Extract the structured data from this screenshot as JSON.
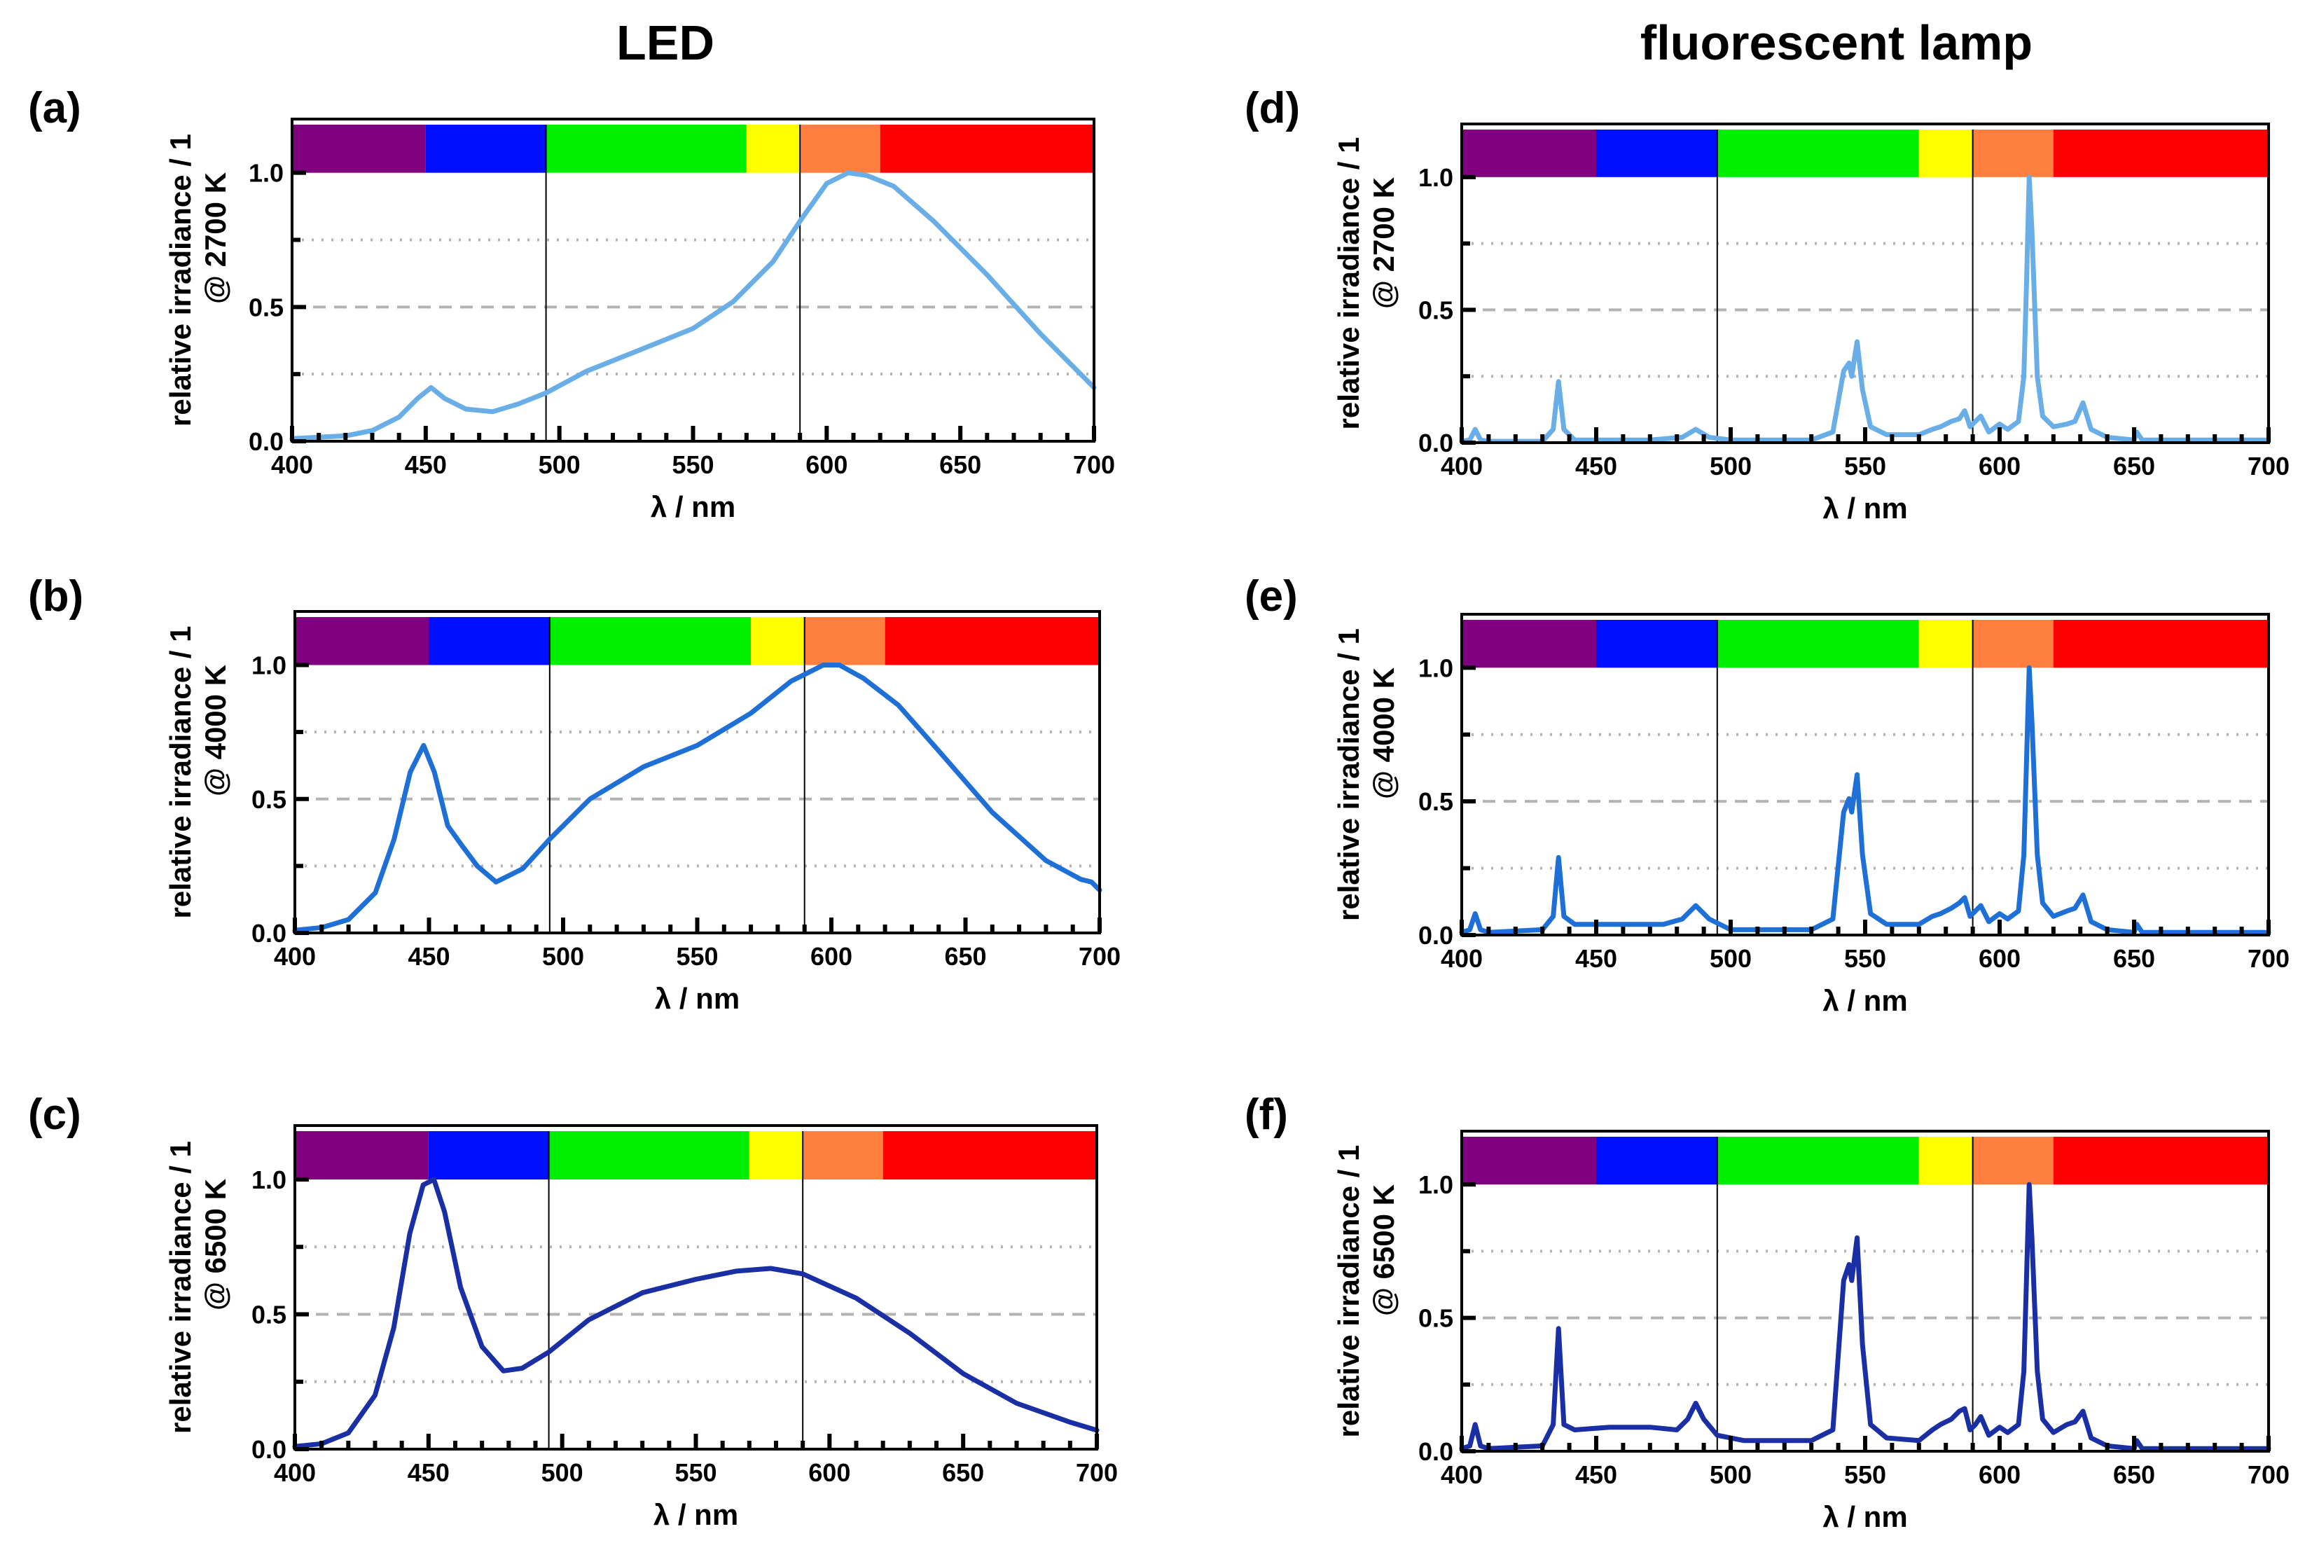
{
  "column_titles": {
    "left": "LED",
    "right": "fluorescent lamp"
  },
  "colors": {
    "bands": [
      "#800080",
      "#0010ff",
      "#00ee00",
      "#ffff00",
      "#ff7f3f",
      "#ff0000"
    ],
    "series": {
      "a": "#6aaee8",
      "b": "#1e6fd6",
      "c": "#1a2fa3",
      "d": "#6aaee8",
      "e": "#1e6fd6",
      "f": "#1a2fa3"
    },
    "gridline": "#b3b3b3"
  },
  "chart_data": [
    {
      "id": "a",
      "label": "(a)",
      "type": "line",
      "ylabel_line1": "relative irradiance / 1",
      "ylabel_line2": "@ 2700 K",
      "xlabel": "λ / nm",
      "xlim": [
        400,
        700
      ],
      "ylim": [
        0,
        1.2
      ],
      "xticks": [
        "400",
        "450",
        "500",
        "550",
        "600",
        "650",
        "700"
      ],
      "yticks": [
        "0.0",
        "0.5",
        "1.0"
      ],
      "bands": [
        [
          400,
          450
        ],
        [
          450,
          495
        ],
        [
          495,
          570
        ],
        [
          570,
          590
        ],
        [
          590,
          620
        ],
        [
          620,
          700
        ]
      ],
      "dividers": [
        495,
        590
      ],
      "series": [
        {
          "name": "LED 2700 K",
          "x": [
            400,
            410,
            420,
            430,
            440,
            447,
            452,
            457,
            465,
            475,
            485,
            495,
            510,
            530,
            550,
            565,
            580,
            590,
            600,
            608,
            615,
            625,
            640,
            660,
            680,
            690,
            700
          ],
          "y": [
            0.01,
            0.015,
            0.02,
            0.04,
            0.09,
            0.16,
            0.2,
            0.16,
            0.12,
            0.11,
            0.14,
            0.18,
            0.26,
            0.34,
            0.42,
            0.52,
            0.67,
            0.82,
            0.96,
            1.0,
            0.99,
            0.95,
            0.82,
            0.62,
            0.4,
            0.3,
            0.2
          ]
        }
      ]
    },
    {
      "id": "b",
      "label": "(b)",
      "type": "line",
      "ylabel_line1": "relative irradiance / 1",
      "ylabel_line2": "@ 4000 K",
      "xlabel": "λ / nm",
      "xlim": [
        400,
        700
      ],
      "ylim": [
        0,
        1.2
      ],
      "xticks": [
        "400",
        "450",
        "500",
        "550",
        "600",
        "650",
        "700"
      ],
      "yticks": [
        "0.0",
        "0.5",
        "1.0"
      ],
      "bands": [
        [
          400,
          450
        ],
        [
          450,
          495
        ],
        [
          495,
          570
        ],
        [
          570,
          590
        ],
        [
          590,
          620
        ],
        [
          620,
          700
        ]
      ],
      "dividers": [
        495,
        590
      ],
      "series": [
        {
          "name": "LED 4000 K",
          "x": [
            400,
            410,
            420,
            430,
            437,
            443,
            448,
            452,
            457,
            462,
            468,
            475,
            485,
            495,
            510,
            530,
            550,
            570,
            585,
            597,
            603,
            612,
            625,
            640,
            660,
            680,
            693,
            697,
            700
          ],
          "y": [
            0.01,
            0.02,
            0.05,
            0.15,
            0.35,
            0.6,
            0.7,
            0.6,
            0.4,
            0.33,
            0.25,
            0.19,
            0.24,
            0.35,
            0.5,
            0.62,
            0.7,
            0.82,
            0.94,
            1.0,
            1.0,
            0.95,
            0.85,
            0.68,
            0.45,
            0.27,
            0.2,
            0.19,
            0.16
          ]
        }
      ]
    },
    {
      "id": "c",
      "label": "(c)",
      "type": "line",
      "ylabel_line1": "relative irradiance / 1",
      "ylabel_line2": "@ 6500 K",
      "xlabel": "λ / nm",
      "xlim": [
        400,
        700
      ],
      "ylim": [
        0,
        1.2
      ],
      "xticks": [
        "400",
        "450",
        "500",
        "550",
        "600",
        "650",
        "700"
      ],
      "yticks": [
        "0.0",
        "0.5",
        "1.0"
      ],
      "bands": [
        [
          400,
          450
        ],
        [
          450,
          495
        ],
        [
          495,
          570
        ],
        [
          570,
          590
        ],
        [
          590,
          620
        ],
        [
          620,
          700
        ]
      ],
      "dividers": [
        495,
        590
      ],
      "series": [
        {
          "name": "LED 6500 K",
          "x": [
            400,
            410,
            420,
            430,
            437,
            443,
            448,
            452,
            456,
            462,
            470,
            478,
            485,
            495,
            510,
            530,
            550,
            565,
            578,
            590,
            610,
            630,
            650,
            670,
            690,
            700
          ],
          "y": [
            0.01,
            0.02,
            0.06,
            0.2,
            0.45,
            0.8,
            0.98,
            1.0,
            0.88,
            0.6,
            0.38,
            0.29,
            0.3,
            0.36,
            0.48,
            0.58,
            0.63,
            0.66,
            0.67,
            0.65,
            0.56,
            0.43,
            0.28,
            0.17,
            0.1,
            0.07
          ]
        }
      ]
    },
    {
      "id": "d",
      "label": "(d)",
      "type": "line",
      "ylabel_line1": "relative irradiance / 1",
      "ylabel_line2": "@ 2700 K",
      "xlabel": "λ / nm",
      "xlim": [
        400,
        700
      ],
      "ylim": [
        0,
        1.2
      ],
      "xticks": [
        "400",
        "450",
        "500",
        "550",
        "600",
        "650",
        "700"
      ],
      "yticks": [
        "0.0",
        "0.5",
        "1.0"
      ],
      "bands": [
        [
          400,
          450
        ],
        [
          450,
          495
        ],
        [
          495,
          570
        ],
        [
          570,
          590
        ],
        [
          590,
          620
        ],
        [
          620,
          700
        ]
      ],
      "dividers": [
        495,
        590
      ],
      "series": [
        {
          "name": "fluorescent 2700 K",
          "x": [
            400,
            403,
            405,
            407,
            410,
            430,
            434,
            436,
            438,
            442,
            470,
            482,
            487,
            492,
            500,
            530,
            538,
            542,
            544,
            545,
            547,
            549,
            552,
            558,
            570,
            575,
            578,
            582,
            585,
            587,
            589,
            591,
            593,
            596,
            600,
            603,
            607,
            609,
            610,
            611,
            612,
            614,
            616,
            620,
            625,
            628,
            631,
            634,
            640,
            650,
            651,
            653,
            660,
            680,
            690,
            700
          ],
          "y": [
            0.005,
            0.01,
            0.05,
            0.01,
            0.005,
            0.005,
            0.05,
            0.23,
            0.05,
            0.01,
            0.01,
            0.02,
            0.05,
            0.02,
            0.01,
            0.01,
            0.04,
            0.27,
            0.3,
            0.25,
            0.38,
            0.2,
            0.06,
            0.03,
            0.03,
            0.05,
            0.06,
            0.08,
            0.09,
            0.12,
            0.06,
            0.08,
            0.1,
            0.04,
            0.07,
            0.05,
            0.08,
            0.25,
            0.6,
            1.0,
            0.8,
            0.25,
            0.1,
            0.06,
            0.07,
            0.08,
            0.15,
            0.05,
            0.02,
            0.01,
            0.04,
            0.01,
            0.01,
            0.01,
            0.01,
            0.01
          ]
        }
      ]
    },
    {
      "id": "e",
      "label": "(e)",
      "type": "line",
      "ylabel_line1": "relative irradiance / 1",
      "ylabel_line2": "@ 4000 K",
      "xlabel": "λ / nm",
      "xlim": [
        400,
        700
      ],
      "ylim": [
        0,
        1.2
      ],
      "xticks": [
        "400",
        "450",
        "500",
        "550",
        "600",
        "650",
        "700"
      ],
      "yticks": [
        "0.0",
        "0.5",
        "1.0"
      ],
      "bands": [
        [
          400,
          450
        ],
        [
          450,
          495
        ],
        [
          495,
          570
        ],
        [
          570,
          590
        ],
        [
          590,
          620
        ],
        [
          620,
          700
        ]
      ],
      "dividers": [
        495,
        590
      ],
      "series": [
        {
          "name": "fluorescent 4000 K",
          "x": [
            400,
            403,
            405,
            407,
            410,
            430,
            434,
            436,
            438,
            442,
            460,
            475,
            482,
            487,
            492,
            500,
            530,
            538,
            542,
            544,
            545,
            547,
            549,
            552,
            558,
            570,
            575,
            578,
            582,
            585,
            587,
            589,
            591,
            593,
            596,
            600,
            603,
            607,
            609,
            610,
            611,
            612,
            614,
            616,
            620,
            625,
            628,
            631,
            634,
            640,
            650,
            651,
            653,
            660,
            680,
            690,
            700
          ],
          "y": [
            0.01,
            0.02,
            0.08,
            0.02,
            0.01,
            0.02,
            0.07,
            0.29,
            0.07,
            0.04,
            0.04,
            0.04,
            0.06,
            0.11,
            0.06,
            0.02,
            0.02,
            0.06,
            0.46,
            0.51,
            0.46,
            0.6,
            0.3,
            0.08,
            0.04,
            0.04,
            0.07,
            0.08,
            0.1,
            0.12,
            0.14,
            0.07,
            0.09,
            0.11,
            0.05,
            0.08,
            0.06,
            0.09,
            0.3,
            0.65,
            1.0,
            0.8,
            0.3,
            0.12,
            0.07,
            0.09,
            0.1,
            0.15,
            0.05,
            0.02,
            0.01,
            0.04,
            0.01,
            0.01,
            0.01,
            0.01,
            0.01
          ]
        }
      ]
    },
    {
      "id": "f",
      "label": "(f)",
      "type": "line",
      "ylabel_line1": "relative irradiance / 1",
      "ylabel_line2": "@ 6500 K",
      "xlabel": "λ / nm",
      "xlim": [
        400,
        700
      ],
      "ylim": [
        0,
        1.2
      ],
      "xticks": [
        "400",
        "450",
        "500",
        "550",
        "600",
        "650",
        "700"
      ],
      "yticks": [
        "0.0",
        "0.5",
        "1.0"
      ],
      "bands": [
        [
          400,
          450
        ],
        [
          450,
          495
        ],
        [
          495,
          570
        ],
        [
          570,
          590
        ],
        [
          590,
          620
        ],
        [
          620,
          700
        ]
      ],
      "dividers": [
        495,
        590
      ],
      "series": [
        {
          "name": "fluorescent 6500 K",
          "x": [
            400,
            403,
            405,
            407,
            410,
            430,
            434,
            436,
            438,
            442,
            455,
            470,
            480,
            484,
            487,
            490,
            495,
            505,
            520,
            530,
            538,
            542,
            544,
            545,
            547,
            549,
            552,
            558,
            570,
            575,
            578,
            582,
            585,
            587,
            589,
            591,
            593,
            596,
            600,
            603,
            607,
            609,
            610,
            611,
            612,
            614,
            616,
            620,
            625,
            628,
            631,
            634,
            640,
            650,
            651,
            653,
            660,
            680,
            690,
            700
          ],
          "y": [
            0.01,
            0.02,
            0.1,
            0.02,
            0.01,
            0.02,
            0.1,
            0.46,
            0.1,
            0.08,
            0.09,
            0.09,
            0.08,
            0.12,
            0.18,
            0.12,
            0.06,
            0.04,
            0.04,
            0.04,
            0.08,
            0.64,
            0.7,
            0.64,
            0.8,
            0.4,
            0.1,
            0.05,
            0.04,
            0.08,
            0.1,
            0.12,
            0.15,
            0.16,
            0.08,
            0.1,
            0.13,
            0.06,
            0.09,
            0.07,
            0.1,
            0.3,
            0.65,
            1.0,
            0.8,
            0.3,
            0.12,
            0.07,
            0.1,
            0.11,
            0.15,
            0.05,
            0.02,
            0.01,
            0.04,
            0.01,
            0.01,
            0.01,
            0.01,
            0.01
          ]
        }
      ]
    }
  ]
}
